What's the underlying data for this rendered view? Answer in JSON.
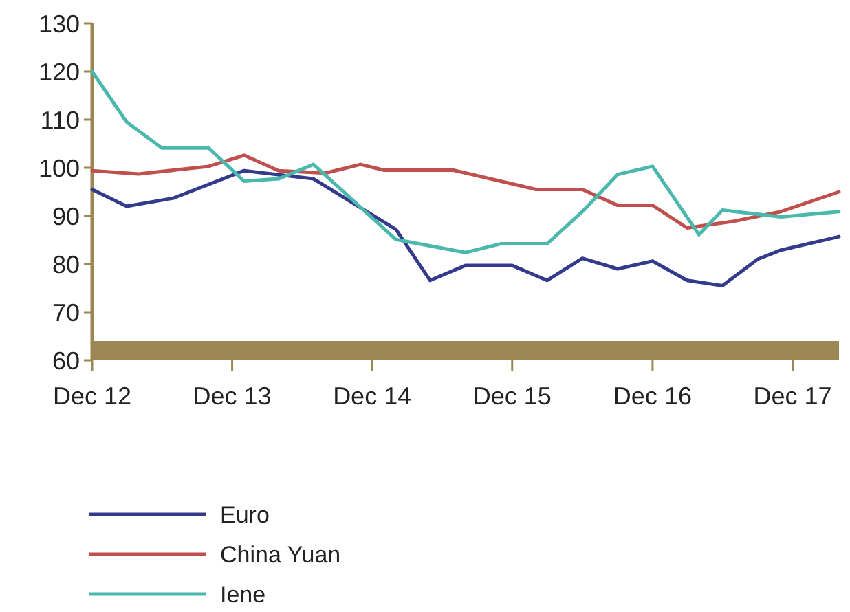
{
  "chart_data": {
    "type": "line",
    "xlim": [
      "2012-12",
      "2018-04"
    ],
    "xticks": [
      {
        "value": "2012-12",
        "label": "Dec 12"
      },
      {
        "value": "2013-12",
        "label": "Dec 13"
      },
      {
        "value": "2014-12",
        "label": "Dec 14"
      },
      {
        "value": "2015-12",
        "label": "Dec 15"
      },
      {
        "value": "2016-12",
        "label": "Dec 16"
      },
      {
        "value": "2017-12",
        "label": "Dec 17"
      }
    ],
    "ylim": [
      60,
      130
    ],
    "yticks": [
      60,
      70,
      80,
      90,
      100,
      110,
      120,
      130
    ],
    "grid": false,
    "legend": "bottom",
    "marker": "none",
    "line_style": "solid",
    "series": [
      {
        "name": "Euro",
        "color": "#343b8c",
        "x": [
          "2012-12",
          "2013-03",
          "2013-07",
          "2014-01",
          "2014-07",
          "2015-02",
          "2015-05",
          "2015-08",
          "2015-12",
          "2016-03",
          "2016-06",
          "2016-09",
          "2016-12",
          "2017-03",
          "2017-06",
          "2017-09",
          "2017-11",
          "2018-04"
        ],
        "values": [
          95.5,
          92,
          93.7,
          99.4,
          97.7,
          87.2,
          76.6,
          79.7,
          79.7,
          76.6,
          81.2,
          79,
          80.6,
          76.6,
          75.5,
          81,
          82.9,
          85.7
        ]
      },
      {
        "name": "China Yuan",
        "color": "#c0504d",
        "x": [
          "2012-12",
          "2013-04",
          "2013-10",
          "2014-01",
          "2014-04",
          "2014-08",
          "2014-11",
          "2015-01",
          "2015-07",
          "2016-02",
          "2016-06",
          "2016-09",
          "2016-12",
          "2017-03",
          "2017-07",
          "2017-11",
          "2018-04"
        ],
        "values": [
          99.4,
          98.7,
          100.3,
          102.6,
          99.4,
          98.9,
          100.7,
          99.5,
          99.5,
          95.5,
          95.5,
          92.2,
          92.2,
          87.5,
          88.9,
          90.9,
          95
        ]
      },
      {
        "name": "Iene",
        "color": "#4bb8ad",
        "x": [
          "2012-12",
          "2013-03",
          "2013-06",
          "2013-10",
          "2014-01",
          "2014-04",
          "2014-07",
          "2015-02",
          "2015-08",
          "2015-11",
          "2016-03",
          "2016-06",
          "2016-09",
          "2016-12",
          "2017-04",
          "2017-06",
          "2017-11",
          "2018-04"
        ],
        "values": [
          120,
          109.5,
          104.1,
          104.1,
          97.2,
          97.7,
          100.7,
          85.1,
          82.4,
          84.2,
          84.2,
          90.9,
          98.6,
          100.3,
          86.1,
          91.2,
          89.8,
          90.9
        ]
      }
    ]
  }
}
